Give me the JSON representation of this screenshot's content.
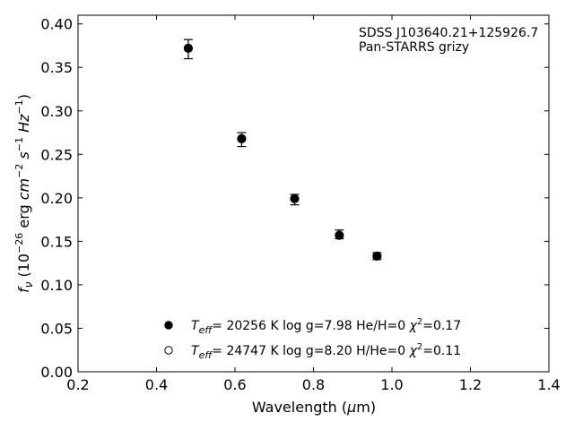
{
  "chart_data": {
    "type": "scatter",
    "title": "",
    "xlabel": "Wavelength (μm)",
    "ylabel": "f_ν (10^-26 erg cm^-2 s^-1 Hz^-1)",
    "xlim": [
      0.2,
      1.4
    ],
    "ylim": [
      0.0,
      0.41
    ],
    "xticks": [
      "0.2",
      "0.4",
      "0.6",
      "0.8",
      "1.0",
      "1.2",
      "1.4"
    ],
    "yticks": [
      "0.00",
      "0.05",
      "0.10",
      "0.15",
      "0.20",
      "0.25",
      "0.30",
      "0.35",
      "0.40"
    ],
    "grid": false,
    "annotations": [
      "SDSS J103640.21+125926.7",
      "Pan-STARRS grizy"
    ],
    "observed": {
      "x": [
        0.481,
        0.617,
        0.752,
        0.866,
        0.962
      ],
      "y": [
        0.371,
        0.267,
        0.198,
        0.158,
        0.133
      ],
      "err": [
        0.011,
        0.008,
        0.006,
        0.005,
        0.004
      ]
    },
    "series": [
      {
        "name": "Teff= 20256 K  log g=7.98  He/H=0  χ²=0.17",
        "marker": "filled",
        "x": [
          0.481,
          0.617,
          0.752,
          0.866,
          0.962
        ],
        "y": [
          0.372,
          0.268,
          0.199,
          0.157,
          0.133
        ]
      },
      {
        "name": "Teff= 24747 K  log g=8.20  H/He=0  χ²=0.11",
        "marker": "open",
        "x": [
          0.481,
          0.617,
          0.752,
          0.866,
          0.962
        ],
        "y": [
          0.372,
          0.268,
          0.199,
          0.157,
          0.133
        ]
      }
    ],
    "legend": [
      {
        "label": "T_eff= 20256 K  log g=7.98  He/H=0  χ²=0.17"
      },
      {
        "label": "T_eff= 24747 K  log g=8.20  H/He=0  χ²=0.11"
      }
    ],
    "legend_position": "bottom-center",
    "colors": {
      "marker": "#000000",
      "axes": "#000000",
      "background": "#ffffff"
    }
  }
}
